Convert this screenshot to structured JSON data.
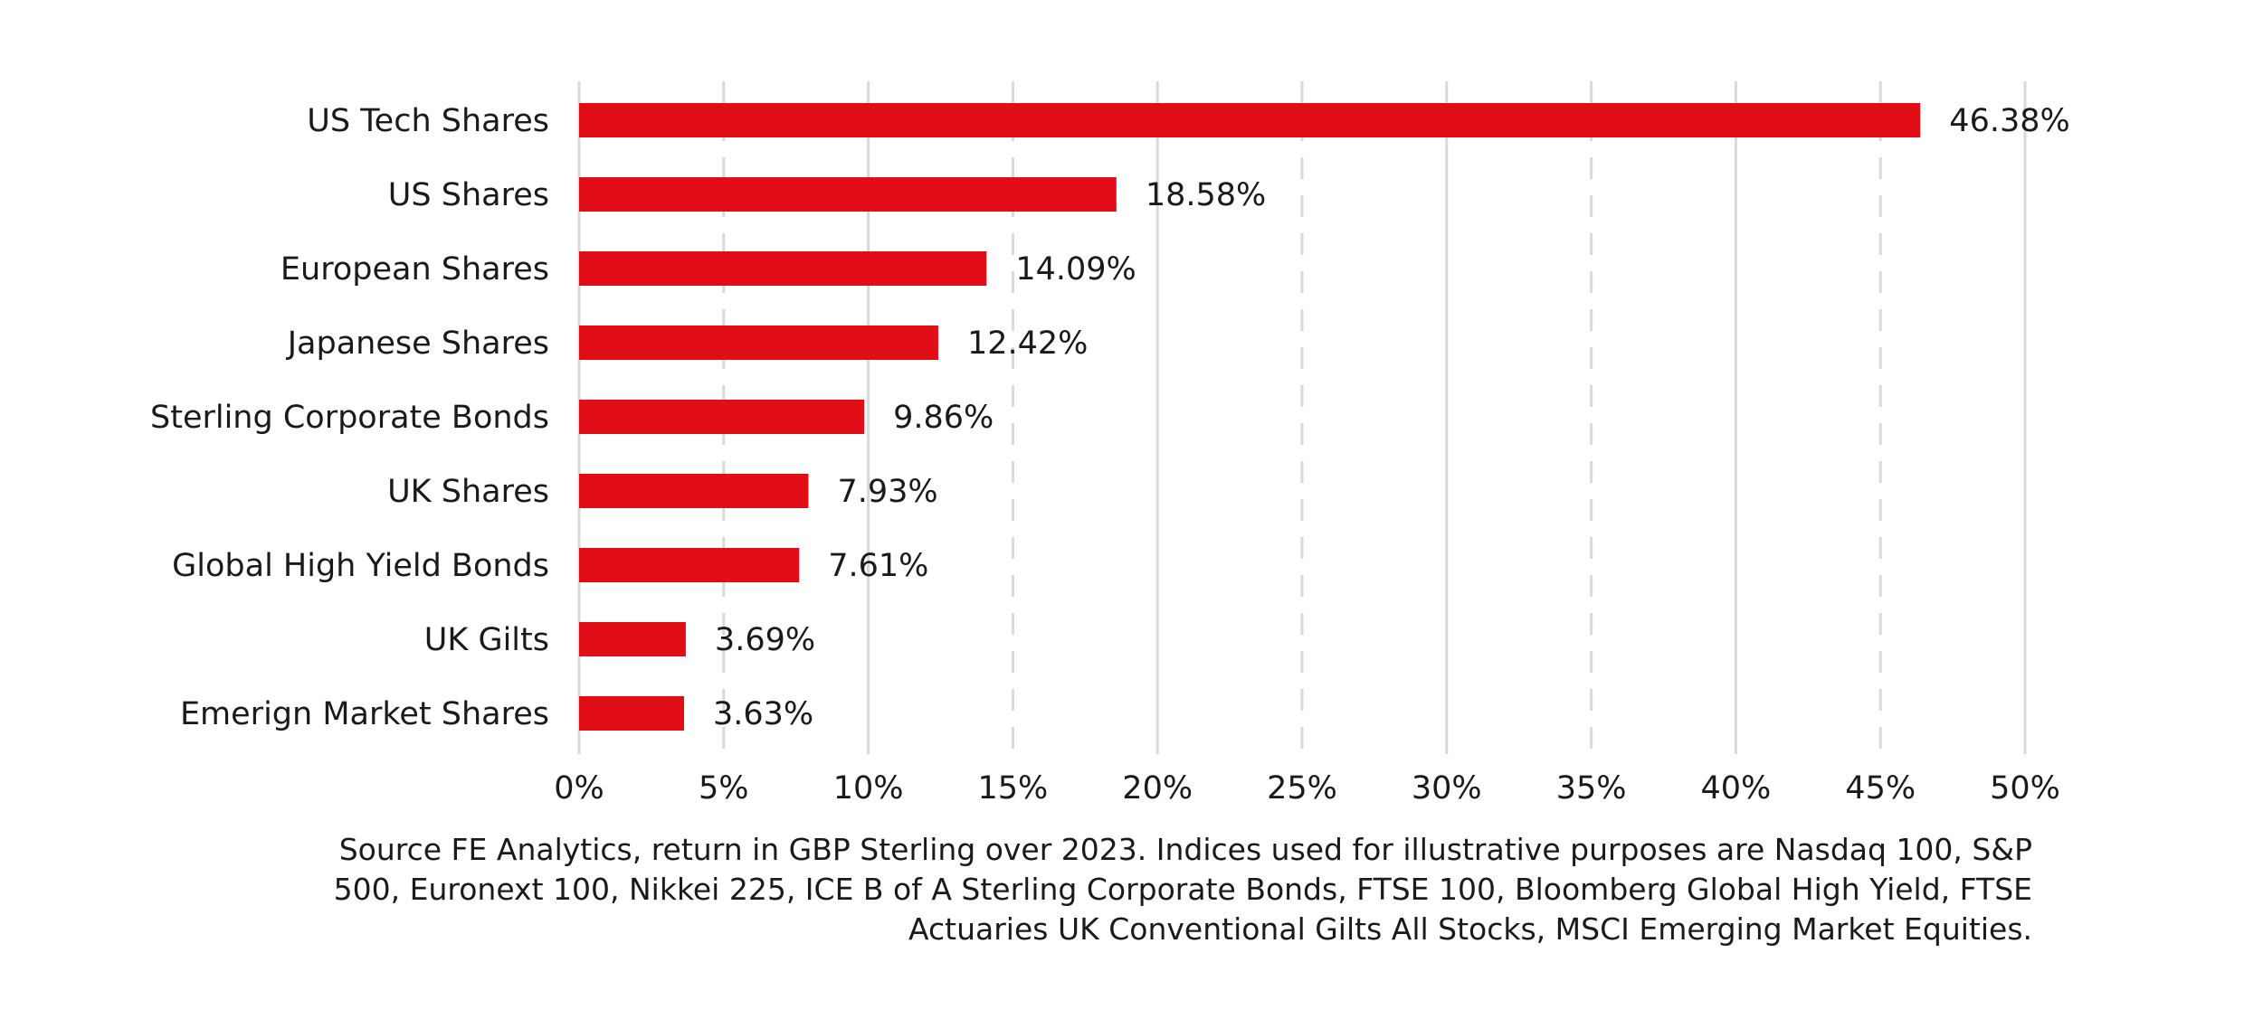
{
  "chart_data": {
    "type": "bar",
    "orientation": "horizontal",
    "categories": [
      "US Tech Shares",
      "US Shares",
      "European Shares",
      "Japanese Shares",
      "Sterling Corporate Bonds",
      "UK Shares",
      "Global High Yield Bonds",
      "UK Gilts",
      "Emerign Market Shares"
    ],
    "values": [
      46.38,
      18.58,
      14.09,
      12.42,
      9.86,
      7.93,
      7.61,
      3.69,
      3.63
    ],
    "value_labels": [
      "46.38%",
      "18.58%",
      "14.09%",
      "12.42%",
      "9.86%",
      "7.93%",
      "7.61%",
      "3.69%",
      "3.63%"
    ],
    "xlim": [
      0,
      50
    ],
    "xticks": [
      0,
      5,
      10,
      15,
      20,
      25,
      30,
      35,
      40,
      45,
      50
    ],
    "xtick_labels": [
      "0%",
      "5%",
      "10%",
      "15%",
      "20%",
      "25%",
      "30%",
      "35%",
      "40%",
      "45%",
      "50%"
    ],
    "grid": true,
    "bar_color": "#e20e17",
    "grid_color": "#d9d9d9",
    "title": "",
    "xlabel": "",
    "ylabel": ""
  },
  "source_note": "Source FE Analytics, return in GBP Sterling over 2023. Indices used for illustrative purposes are Nasdaq 100, S&P 500, Euronext 100, Nikkei 225, ICE B of A Sterling Corporate Bonds, FTSE 100, Bloomberg Global High Yield, FTSE Actuaries UK Conventional Gilts All Stocks, MSCI Emerging Market Equities."
}
